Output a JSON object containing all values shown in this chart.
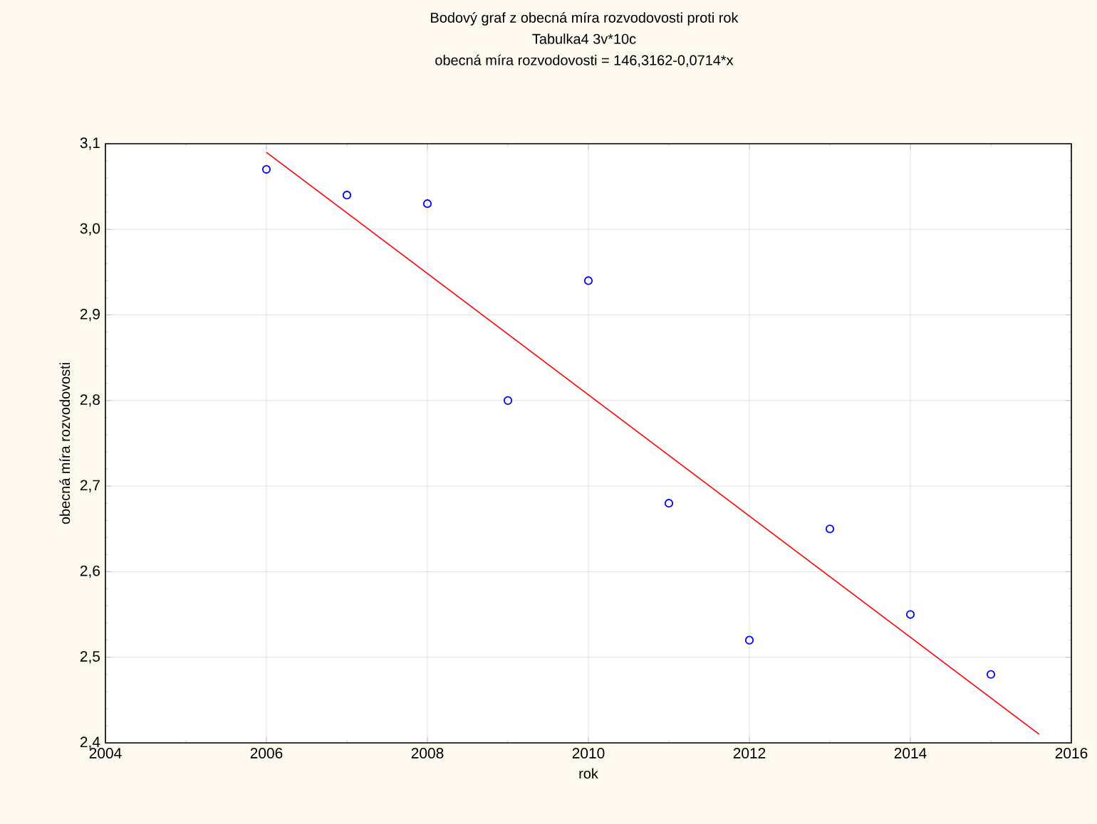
{
  "chart_data": {
    "type": "scatter",
    "title": "Bodový graf z obecná míra rozvodovosti proti rok",
    "subtitle": "Tabulka4 3v*10c",
    "annotations": [
      "obecná míra rozvodovosti = 146,3162-0,0714*x"
    ],
    "xlabel": "rok",
    "ylabel": "obecná míra rozvodovosti",
    "series": [
      {
        "color": "#0000ff",
        "marker": "circle",
        "x": [
          2006,
          2007,
          2008,
          2009,
          2010,
          2011,
          2012,
          2013,
          2014,
          2015
        ],
        "values": [
          3.07,
          3.04,
          3.03,
          2.8,
          2.94,
          2.68,
          2.52,
          2.65,
          2.55,
          2.48
        ]
      },
      {
        "type": "line",
        "color": "#ff0000",
        "marker": "none",
        "line_style": "solid",
        "x": [
          2006,
          2015.6
        ],
        "values": [
          3.09,
          2.41
        ]
      }
    ],
    "xlim": [
      2004,
      2016
    ],
    "xticks": [
      2004,
      2006,
      2008,
      2010,
      2012,
      2014,
      2016
    ],
    "ylim": [
      2.4,
      3.1
    ],
    "yticks": [
      {
        "value": 2.4,
        "label": "2,4"
      },
      {
        "value": 2.5,
        "label": "2,5"
      },
      {
        "value": 2.6,
        "label": "2,6"
      },
      {
        "value": 2.7,
        "label": "2,7"
      },
      {
        "value": 2.8,
        "label": "2,8"
      },
      {
        "value": 2.9,
        "label": "2,9"
      },
      {
        "value": 3.0,
        "label": "3,0"
      },
      {
        "value": 3.1,
        "label": "3,1"
      }
    ],
    "grid": true
  }
}
